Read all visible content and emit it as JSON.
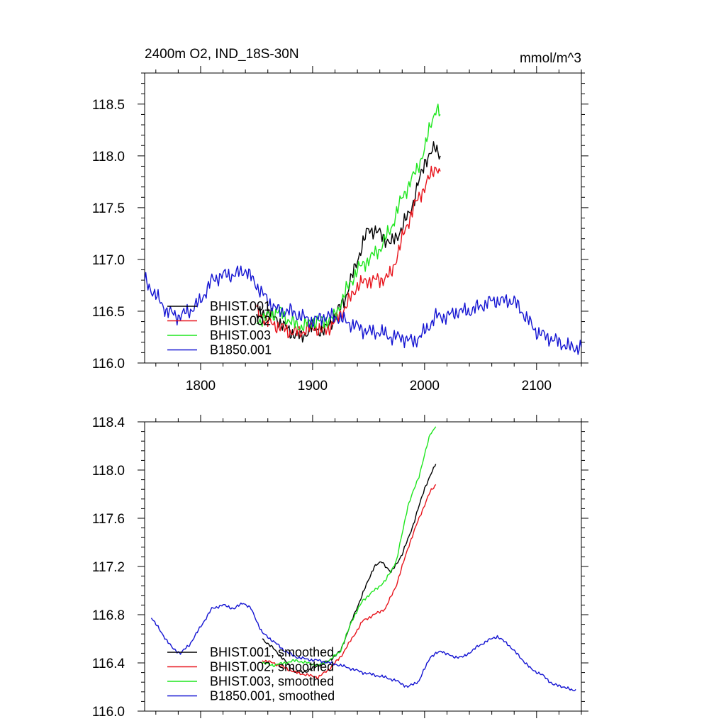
{
  "figure": {
    "left_title": "2400m O2, IND_18S-30N",
    "right_title": "mmol/m^3"
  },
  "colors": {
    "BHIST.001": "#000000",
    "BHIST.002": "#e8141c",
    "BHIST.003": "#1ee61e",
    "B1850.001": "#1414d2"
  },
  "chart_data": [
    {
      "type": "line",
      "title": "",
      "xlabel": "",
      "ylabel": "",
      "xlim": [
        1750,
        2140
      ],
      "ylim": [
        116.0,
        118.8
      ],
      "x_ticks": [
        1800,
        1900,
        2000,
        2100
      ],
      "x_tick_labels": [
        "1800",
        "1900",
        "2000",
        "2100"
      ],
      "y_ticks": [
        116.0,
        116.5,
        117.0,
        117.5,
        118.0,
        118.5
      ],
      "y_tick_labels": [
        "116.0",
        "116.5",
        "117.0",
        "117.5",
        "118.0",
        "118.5"
      ],
      "grid": false,
      "legend_position": "bottom-left",
      "noise": 0.07,
      "series": [
        {
          "name": "BHIST.001",
          "x": [
            1850,
            1860,
            1870,
            1880,
            1890,
            1900,
            1910,
            1920,
            1930,
            1940,
            1950,
            1960,
            1970,
            1980,
            1990,
            2000,
            2005,
            2010,
            2014
          ],
          "y": [
            116.45,
            116.5,
            116.4,
            116.3,
            116.25,
            116.35,
            116.3,
            116.45,
            116.65,
            117.0,
            117.3,
            117.25,
            117.15,
            117.3,
            117.55,
            117.95,
            118.0,
            118.1,
            118.0
          ]
        },
        {
          "name": "BHIST.002",
          "x": [
            1850,
            1860,
            1870,
            1880,
            1890,
            1900,
            1910,
            1920,
            1930,
            1940,
            1950,
            1960,
            1970,
            1980,
            1990,
            2000,
            2005,
            2010,
            2014
          ],
          "y": [
            116.5,
            116.4,
            116.35,
            116.3,
            116.3,
            116.35,
            116.3,
            116.4,
            116.55,
            116.75,
            116.8,
            116.8,
            116.85,
            117.2,
            117.5,
            117.7,
            117.8,
            117.9,
            117.85
          ]
        },
        {
          "name": "BHIST.003",
          "x": [
            1850,
            1860,
            1870,
            1880,
            1890,
            1900,
            1910,
            1920,
            1930,
            1940,
            1950,
            1960,
            1970,
            1980,
            1990,
            2000,
            2005,
            2010,
            2014
          ],
          "y": [
            116.4,
            116.45,
            116.5,
            116.4,
            116.35,
            116.4,
            116.4,
            116.45,
            116.7,
            116.9,
            117.0,
            117.1,
            117.3,
            117.6,
            117.8,
            118.05,
            118.3,
            118.45,
            118.4
          ]
        },
        {
          "name": "B1850.001",
          "x": [
            1750,
            1760,
            1770,
            1780,
            1790,
            1800,
            1810,
            1820,
            1830,
            1840,
            1850,
            1860,
            1870,
            1880,
            1890,
            1900,
            1910,
            1920,
            1930,
            1940,
            1950,
            1960,
            1970,
            1980,
            1990,
            2000,
            2010,
            2020,
            2030,
            2040,
            2050,
            2060,
            2070,
            2080,
            2090,
            2100,
            2110,
            2120,
            2130,
            2140
          ],
          "y": [
            116.8,
            116.65,
            116.5,
            116.45,
            116.5,
            116.6,
            116.8,
            116.85,
            116.85,
            116.9,
            116.75,
            116.6,
            116.5,
            116.5,
            116.45,
            116.4,
            116.45,
            116.45,
            116.4,
            116.35,
            116.3,
            116.3,
            116.25,
            116.25,
            116.2,
            116.3,
            116.45,
            116.45,
            116.5,
            116.5,
            116.55,
            116.6,
            116.6,
            116.6,
            116.45,
            116.3,
            116.25,
            116.2,
            116.15,
            116.15
          ]
        }
      ]
    },
    {
      "type": "line",
      "title": "",
      "xlabel": "",
      "ylabel": "",
      "xlim": [
        1750,
        2140
      ],
      "ylim": [
        116.0,
        118.4
      ],
      "x_ticks": [
        1800,
        1900,
        2000,
        2100
      ],
      "x_tick_labels": [],
      "y_ticks": [
        116.0,
        116.4,
        116.8,
        117.2,
        117.6,
        118.0,
        118.4
      ],
      "y_tick_labels": [
        "116.0",
        "116.4",
        "116.8",
        "117.2",
        "117.6",
        "118.0",
        "118.4"
      ],
      "grid": false,
      "legend_position": "bottom-left",
      "noise": 0.012,
      "series": [
        {
          "name": "BHIST.001, smoothed",
          "x": [
            1855,
            1865,
            1875,
            1885,
            1895,
            1905,
            1915,
            1925,
            1935,
            1945,
            1955,
            1962,
            1970,
            1980,
            1990,
            2000,
            2010
          ],
          "y": [
            116.6,
            116.52,
            116.42,
            116.32,
            116.33,
            116.38,
            116.42,
            116.5,
            116.75,
            116.98,
            117.2,
            117.24,
            117.15,
            117.3,
            117.55,
            117.85,
            118.05
          ]
        },
        {
          "name": "BHIST.002, smoothed",
          "x": [
            1855,
            1865,
            1875,
            1885,
            1895,
            1905,
            1915,
            1925,
            1935,
            1945,
            1955,
            1965,
            1975,
            1985,
            1995,
            2005,
            2010
          ],
          "y": [
            116.42,
            116.4,
            116.36,
            116.32,
            116.3,
            116.28,
            116.35,
            116.45,
            116.6,
            116.75,
            116.8,
            116.85,
            117.05,
            117.35,
            117.6,
            117.82,
            117.88
          ]
        },
        {
          "name": "BHIST.003, smoothed",
          "x": [
            1855,
            1865,
            1875,
            1885,
            1895,
            1905,
            1915,
            1925,
            1935,
            1945,
            1955,
            1965,
            1975,
            1985,
            1995,
            2005,
            2010
          ],
          "y": [
            116.4,
            116.38,
            116.4,
            116.42,
            116.4,
            116.38,
            116.42,
            116.5,
            116.75,
            116.92,
            117.0,
            117.08,
            117.25,
            117.7,
            117.95,
            118.3,
            118.36
          ]
        },
        {
          "name": "B1850.001, smoothed",
          "x": [
            1756,
            1765,
            1775,
            1782,
            1790,
            1800,
            1810,
            1820,
            1830,
            1838,
            1845,
            1855,
            1865,
            1875,
            1885,
            1895,
            1905,
            1915,
            1925,
            1935,
            1945,
            1955,
            1965,
            1975,
            1985,
            1995,
            2005,
            2015,
            2025,
            2035,
            2045,
            2055,
            2065,
            2075,
            2085,
            2095,
            2105,
            2115,
            2125,
            2132,
            2135
          ],
          "y": [
            116.78,
            116.65,
            116.52,
            116.48,
            116.55,
            116.7,
            116.85,
            116.88,
            116.85,
            116.9,
            116.85,
            116.65,
            116.58,
            116.5,
            116.45,
            116.43,
            116.42,
            116.4,
            116.38,
            116.35,
            116.32,
            116.3,
            116.28,
            116.25,
            116.2,
            116.25,
            116.45,
            116.5,
            116.45,
            116.45,
            116.52,
            116.58,
            116.62,
            116.55,
            116.45,
            116.35,
            116.3,
            116.22,
            116.2,
            116.17,
            116.18
          ]
        }
      ]
    }
  ]
}
